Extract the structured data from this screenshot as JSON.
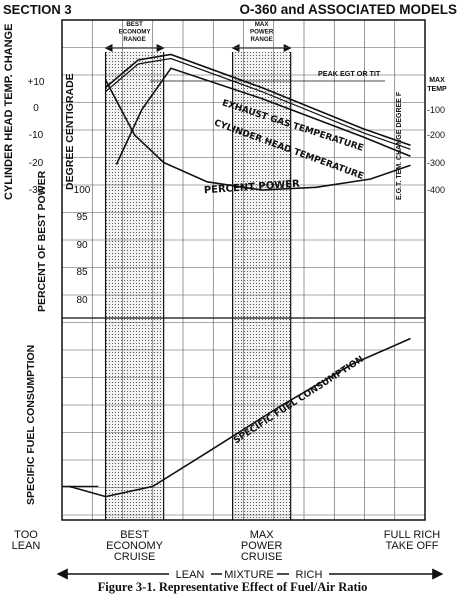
{
  "header": {
    "section": "SECTION 3",
    "title": "O-360 and ASSOCIATED MODELS"
  },
  "caption": "Figure 3-1. Representative Effect of Fuel/Air Ratio",
  "chart_data": {
    "type": "line",
    "bands": [
      {
        "label_lines": [
          "BEST",
          "ECONOMY",
          "RANGE"
        ],
        "x_range": [
          0.12,
          0.28
        ]
      },
      {
        "label_lines": [
          "MAX",
          "POWER",
          "RANGE"
        ],
        "x_range": [
          0.47,
          0.63
        ]
      }
    ],
    "axes": {
      "cht": {
        "label": "CYLINDER HEAD TEMP. CHANGE",
        "ticks": [
          "+10",
          "0",
          "-10",
          "-20",
          "-30"
        ]
      },
      "cht_unit": {
        "label": "DEGREE CENTIGRADE"
      },
      "egt": {
        "label": "E.G.T. TEM. CHANGE DEGREE F",
        "ticks": [
          "-100",
          "-200",
          "-300",
          "-400"
        ]
      },
      "power": {
        "label": "PERCENT OF BEST POWER",
        "ticks": [
          "100",
          "95",
          "90",
          "85",
          "80"
        ]
      },
      "sfc": {
        "label": "SPECIFIC FUEL CONSUMPTION"
      }
    },
    "series": [
      {
        "name": "EXHAUST GAS TEMPERATURE",
        "x": [
          0.12,
          0.21,
          0.3,
          0.55,
          0.83,
          0.96
        ],
        "y": [
          -2,
          8,
          10,
          -2,
          -17,
          -23
        ],
        "unit": "degF change"
      },
      {
        "name": "CYLINDER HEAD TEMPERATURE",
        "x": [
          0.15,
          0.22,
          0.3,
          0.55,
          0.83,
          0.96
        ],
        "y": [
          -30,
          -10,
          5,
          -6,
          -20,
          -27
        ],
        "unit": "degC change"
      },
      {
        "name": "PERCENT POWER",
        "x": [
          0.12,
          0.2,
          0.28,
          0.4,
          0.55,
          0.7,
          0.85,
          0.96
        ],
        "y": [
          80,
          90,
          95,
          98.5,
          100,
          99.5,
          98,
          95.5
        ],
        "unit": "percent of best power"
      },
      {
        "name": "SPECIFIC FUEL CONSUMPTION",
        "x": [
          0.02,
          0.12,
          0.25,
          0.4,
          0.6,
          0.8,
          0.96
        ],
        "y": [
          0.08,
          0.02,
          0.08,
          0.28,
          0.55,
          0.8,
          0.95
        ],
        "unit": "relative"
      }
    ],
    "annotations": {
      "peak_label": "PEAK EGT OR TIT",
      "max_temp": [
        "MAX",
        "TEMP"
      ]
    },
    "x_labels": [
      {
        "lines": [
          "TOO",
          "LEAN"
        ],
        "x": 0.0
      },
      {
        "lines": [
          "BEST",
          "ECONOMY",
          "CRUISE"
        ],
        "x": 0.2
      },
      {
        "lines": [
          "MAX",
          "POWER",
          "CRUISE"
        ],
        "x": 0.55
      },
      {
        "lines": [
          "FULL RICH",
          "TAKE OFF"
        ],
        "x": 0.96
      }
    ],
    "mixture_axis": {
      "lean": "LEAN",
      "mixture": "MIXTURE",
      "rich": "RICH"
    },
    "grid": true
  }
}
